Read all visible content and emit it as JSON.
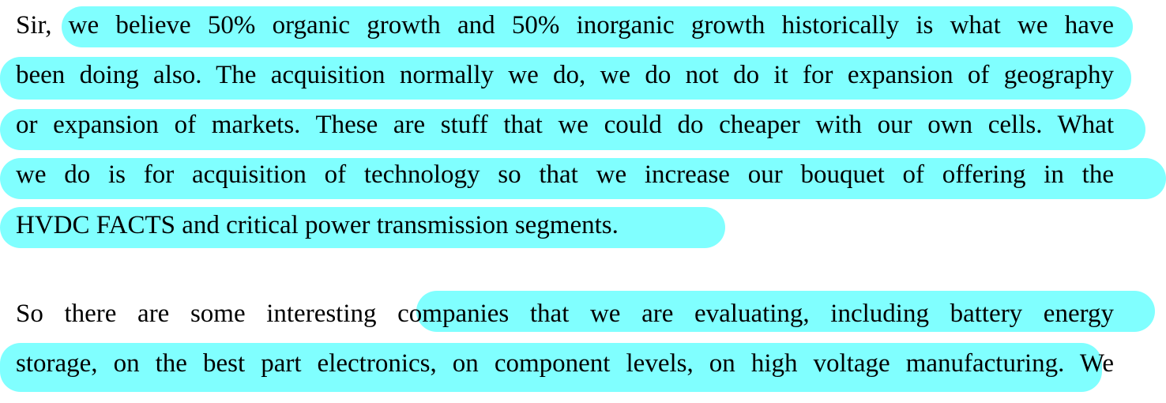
{
  "paragraphs": [
    {
      "lines": [
        "Sir, we believe 50% organic growth and 50% inorganic growth historically is what we have",
        "been doing also. The acquisition normally we do, we do not do it for expansion of geography",
        "or expansion of markets. These are stuff that we could do cheaper with our own cells. What",
        "we do is for acquisition of technology so that we increase our bouquet of offering in the",
        "HVDC FACTS and critical power transmission segments."
      ]
    },
    {
      "lines": [
        "So there are some interesting companies that we are evaluating, including battery energy",
        "storage, on the best part electronics, on component levels, on high voltage manufacturing. We"
      ]
    }
  ]
}
